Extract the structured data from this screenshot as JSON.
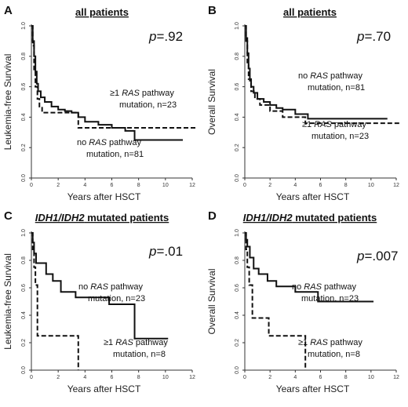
{
  "chart_data": [
    {
      "type": "line",
      "panel_label": "A",
      "title": "all patients",
      "p_value": {
        "prefix": "p",
        "value": "=.92"
      },
      "xlabel": "Years after HSCT",
      "ylabel": "Leukemia-free Survival",
      "xlim": [
        0,
        12
      ],
      "ylim": [
        0,
        1
      ],
      "xticks": [
        "0",
        "2",
        "4",
        "6",
        "8",
        "10",
        "12"
      ],
      "yticks": [
        "0.0",
        "0.2",
        "0.4",
        "0.6",
        "0.8",
        "1.0"
      ],
      "series": [
        {
          "style": "dashed",
          "label_parts": [
            [
              "≥1 ",
              ""
            ],
            [
              "RAS",
              "i"
            ],
            [
              " pathway",
              ""
            ]
          ],
          "label_line2": "mutation, n=23",
          "x": [
            0,
            0.1,
            0.2,
            0.3,
            0.45,
            0.6,
            0.8,
            1.1,
            3.5,
            12.3
          ],
          "y": [
            1.0,
            0.87,
            0.7,
            0.6,
            0.52,
            0.47,
            0.43,
            0.43,
            0.33,
            0.33
          ]
        },
        {
          "style": "solid",
          "label_parts": [
            [
              "no ",
              ""
            ],
            [
              "RAS",
              "i"
            ],
            [
              " pathway",
              ""
            ]
          ],
          "label_line2": "mutation, n=81",
          "x": [
            0,
            0.1,
            0.2,
            0.3,
            0.4,
            0.5,
            0.7,
            1.0,
            1.5,
            2.0,
            2.5,
            3.0,
            3.5,
            4.0,
            5.0,
            6.0,
            7.0,
            7.7,
            11.3
          ],
          "y": [
            1.0,
            0.9,
            0.8,
            0.7,
            0.62,
            0.57,
            0.53,
            0.5,
            0.47,
            0.45,
            0.44,
            0.43,
            0.4,
            0.37,
            0.35,
            0.33,
            0.31,
            0.25,
            0.25
          ]
        }
      ]
    },
    {
      "type": "line",
      "panel_label": "B",
      "title": "all patients",
      "p_value": {
        "prefix": "p",
        "value": "=.70"
      },
      "xlabel": "Years after HSCT",
      "ylabel": "Overall Survival",
      "xlim": [
        0,
        12
      ],
      "ylim": [
        0,
        1
      ],
      "xticks": [
        "0",
        "2",
        "4",
        "6",
        "8",
        "10",
        "12"
      ],
      "yticks": [
        "0.0",
        "0.2",
        "0.4",
        "0.6",
        "0.8",
        "1.0"
      ],
      "series": [
        {
          "style": "solid",
          "label_parts": [
            [
              "no ",
              ""
            ],
            [
              "RAS",
              "i"
            ],
            [
              " pathway",
              ""
            ]
          ],
          "label_line2": "mutation, n=81",
          "x": [
            0,
            0.1,
            0.2,
            0.3,
            0.4,
            0.5,
            0.7,
            1.0,
            1.5,
            2.0,
            2.5,
            3.0,
            4.0,
            5.0,
            11.3
          ],
          "y": [
            1.0,
            0.92,
            0.82,
            0.72,
            0.64,
            0.6,
            0.56,
            0.52,
            0.5,
            0.48,
            0.46,
            0.45,
            0.42,
            0.39,
            0.39
          ]
        },
        {
          "style": "dashed",
          "label_parts": [
            [
              "≥1 ",
              ""
            ],
            [
              "RAS",
              "i"
            ],
            [
              " pathway",
              ""
            ]
          ],
          "label_line2": "mutation, n=23",
          "x": [
            0,
            0.1,
            0.2,
            0.3,
            0.5,
            0.8,
            1.2,
            2.0,
            3.0,
            4.8,
            12.3
          ],
          "y": [
            1.0,
            0.9,
            0.75,
            0.65,
            0.57,
            0.52,
            0.48,
            0.44,
            0.4,
            0.36,
            0.36
          ]
        }
      ]
    },
    {
      "type": "line",
      "panel_label": "C",
      "title_parts": [
        [
          "IDH1/IDH2",
          "i"
        ],
        [
          " mutated patients",
          ""
        ]
      ],
      "p_value": {
        "prefix": "p",
        "value": "=.01"
      },
      "xlabel": "Years after HSCT",
      "ylabel": "Leukemia-free Survival",
      "xlim": [
        0,
        12
      ],
      "ylim": [
        0,
        1
      ],
      "xticks": [
        "0",
        "2",
        "4",
        "6",
        "8",
        "10",
        "12"
      ],
      "yticks": [
        "0.0",
        "0.2",
        "0.4",
        "0.6",
        "0.8",
        "1.0"
      ],
      "series": [
        {
          "style": "solid",
          "label_parts": [
            [
              "no ",
              ""
            ],
            [
              "RAS",
              "i"
            ],
            [
              " pathway",
              ""
            ]
          ],
          "label_line2": "mutation, n=23",
          "x": [
            0,
            0.1,
            0.2,
            0.35,
            1.1,
            1.6,
            2.2,
            3.3,
            5.8,
            7.7,
            10.2
          ],
          "y": [
            1.0,
            0.93,
            0.85,
            0.78,
            0.7,
            0.65,
            0.57,
            0.53,
            0.48,
            0.23,
            0.23
          ]
        },
        {
          "style": "dashed",
          "label_parts": [
            [
              "≥1 ",
              ""
            ],
            [
              "RAS",
              "i"
            ],
            [
              " pathway",
              ""
            ]
          ],
          "label_line2": "mutation, n=8",
          "x": [
            0,
            0.1,
            0.2,
            0.3,
            0.45,
            3.5
          ],
          "y": [
            1.0,
            0.88,
            0.75,
            0.62,
            0.25,
            0.0
          ]
        }
      ]
    },
    {
      "type": "line",
      "panel_label": "D",
      "title_parts": [
        [
          "IDH1/IDH2",
          "i"
        ],
        [
          " mutated patients",
          ""
        ]
      ],
      "p_value": {
        "prefix": "p",
        "value": "=.007"
      },
      "xlabel": "Years after HSCT",
      "ylabel": "Overall Survival",
      "xlim": [
        0,
        12
      ],
      "ylim": [
        0,
        1
      ],
      "xticks": [
        "0",
        "2",
        "4",
        "6",
        "8",
        "10",
        "12"
      ],
      "yticks": [
        "0.0",
        "0.2",
        "0.4",
        "0.6",
        "0.8",
        "1.0"
      ],
      "series": [
        {
          "style": "solid",
          "label_parts": [
            [
              "no ",
              ""
            ],
            [
              "RAS",
              "i"
            ],
            [
              " pathway",
              ""
            ]
          ],
          "label_line2": "mutation, n=23",
          "x": [
            0,
            0.1,
            0.2,
            0.4,
            0.7,
            1.1,
            1.8,
            2.5,
            4.0,
            5.8,
            10.2
          ],
          "y": [
            1.0,
            0.95,
            0.9,
            0.82,
            0.74,
            0.7,
            0.65,
            0.61,
            0.57,
            0.5,
            0.5
          ]
        },
        {
          "style": "dashed",
          "label_parts": [
            [
              "≥1 ",
              ""
            ],
            [
              "RAS",
              "i"
            ],
            [
              " pathway",
              ""
            ]
          ],
          "label_line2": "mutation, n=8",
          "x": [
            0,
            0.1,
            0.2,
            0.35,
            0.6,
            1.9,
            4.8
          ],
          "y": [
            1.0,
            0.88,
            0.75,
            0.62,
            0.38,
            0.25,
            0.0
          ]
        }
      ]
    }
  ]
}
